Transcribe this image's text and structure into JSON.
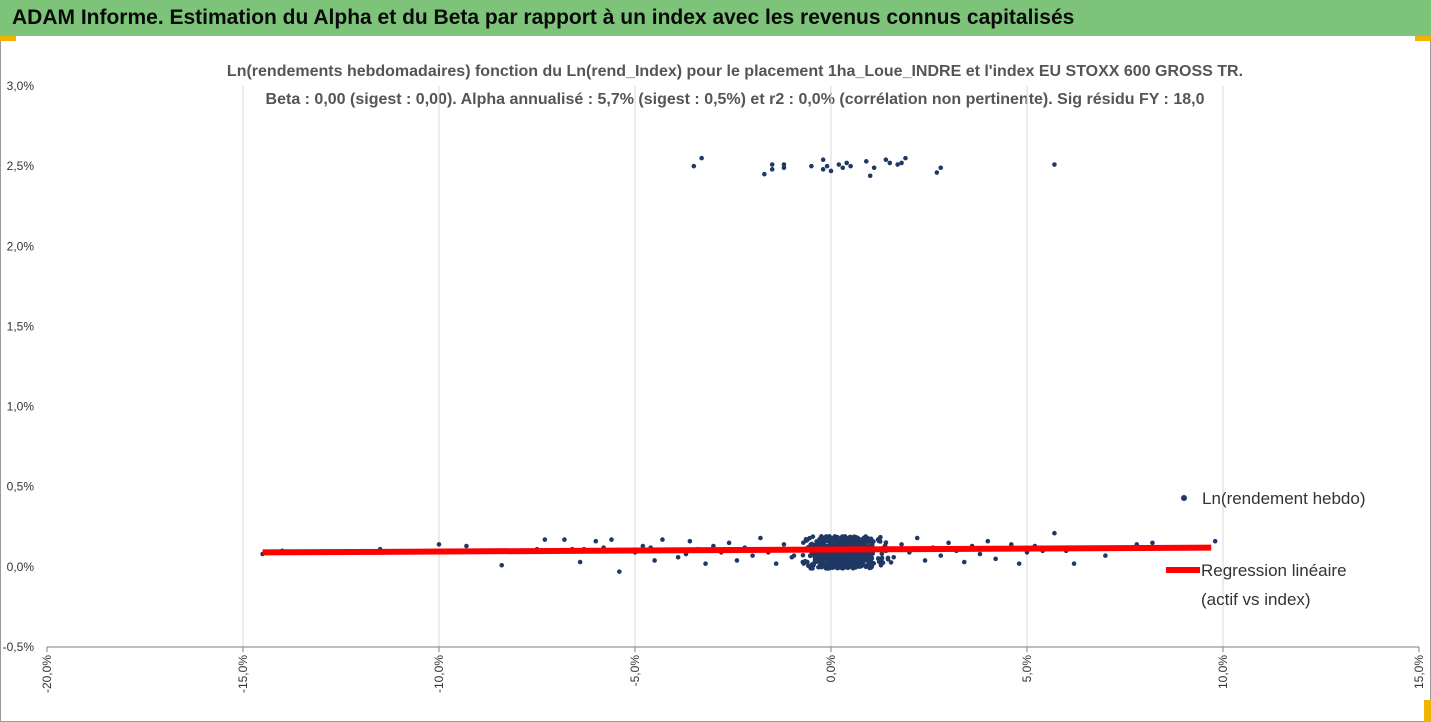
{
  "header": {
    "title": "ADAM Informe. Estimation du Alpha et du Beta par rapport à un index avec les revenus connus capitalisés"
  },
  "chart_data": {
    "type": "scatter",
    "title_line1": "Ln(rendements hebdomadaires) fonction du Ln(rend_Index) pour le placement 1ha_Loue_INDRE et l'index EU STOXX 600 GROSS TR.",
    "title_line2": "Beta : 0,00 (sigest : 0,00). Alpha annualisé : 5,7% (sigest : 0,5%) et r2 : 0,0% (corrélation non pertinente). Sig résidu FY : 18,0",
    "xlim": [
      -20,
      15
    ],
    "ylim": [
      -0.5,
      3.0
    ],
    "x_ticks": [
      "-20,0%",
      "-15,0%",
      "-10,0%",
      "-5,0%",
      "0,0%",
      "5,0%",
      "10,0%",
      "15,0%"
    ],
    "y_ticks": [
      "3,0%",
      "2,5%",
      "2,0%",
      "1,5%",
      "1,0%",
      "0,5%",
      "0,0%",
      "-0,5%"
    ],
    "x_gridlines": true,
    "y_gridlines": false,
    "legend_position": "right",
    "series": [
      {
        "name": "Ln(rendement hebdo)",
        "type": "scatter",
        "color": "#203864",
        "points": [
          [
            -3.5,
            2.5
          ],
          [
            -3.3,
            2.55
          ],
          [
            -1.7,
            2.45
          ],
          [
            -1.5,
            2.48
          ],
          [
            -1.5,
            2.51
          ],
          [
            -1.2,
            2.49
          ],
          [
            -1.2,
            2.51
          ],
          [
            -0.5,
            2.5
          ],
          [
            -0.2,
            2.54
          ],
          [
            -0.2,
            2.48
          ],
          [
            -0.1,
            2.5
          ],
          [
            0.0,
            2.47
          ],
          [
            0.2,
            2.51
          ],
          [
            0.3,
            2.49
          ],
          [
            0.4,
            2.52
          ],
          [
            0.5,
            2.5
          ],
          [
            0.9,
            2.53
          ],
          [
            1.0,
            2.44
          ],
          [
            1.1,
            2.49
          ],
          [
            1.4,
            2.54
          ],
          [
            1.5,
            2.52
          ],
          [
            1.7,
            2.51
          ],
          [
            1.8,
            2.52
          ],
          [
            1.9,
            2.55
          ],
          [
            2.7,
            2.46
          ],
          [
            2.8,
            2.49
          ],
          [
            5.7,
            2.51
          ],
          [
            -14.5,
            0.08
          ],
          [
            -14.0,
            0.1
          ],
          [
            -11.5,
            0.11
          ],
          [
            -10.0,
            0.14
          ],
          [
            -9.3,
            0.13
          ],
          [
            -8.4,
            0.01
          ],
          [
            -8.3,
            0.1
          ],
          [
            -7.5,
            0.11
          ],
          [
            -7.3,
            0.17
          ],
          [
            -6.8,
            0.17
          ],
          [
            -6.6,
            0.11
          ],
          [
            -6.4,
            0.03
          ],
          [
            -6.3,
            0.11
          ],
          [
            -6.0,
            0.16
          ],
          [
            -5.8,
            0.12
          ],
          [
            -5.6,
            0.17
          ],
          [
            -5.4,
            -0.03
          ],
          [
            -5.0,
            0.09
          ],
          [
            -4.8,
            0.13
          ],
          [
            -4.6,
            0.12
          ],
          [
            -4.5,
            0.04
          ],
          [
            -4.3,
            0.17
          ],
          [
            -4.1,
            0.1
          ],
          [
            -3.9,
            0.06
          ],
          [
            -3.7,
            0.08
          ],
          [
            -3.6,
            0.16
          ],
          [
            -3.4,
            0.11
          ],
          [
            -3.2,
            0.02
          ],
          [
            -3.0,
            0.13
          ],
          [
            -2.8,
            0.09
          ],
          [
            -2.6,
            0.15
          ],
          [
            -2.4,
            0.04
          ],
          [
            -2.2,
            0.12
          ],
          [
            -2.0,
            0.07
          ],
          [
            -1.8,
            0.18
          ],
          [
            -1.6,
            0.09
          ],
          [
            -1.4,
            0.02
          ],
          [
            -1.2,
            0.14
          ],
          [
            -1.0,
            0.06
          ],
          [
            -0.8,
            0.11
          ],
          [
            -0.6,
            0.17
          ],
          [
            -0.4,
            0.03
          ],
          [
            -0.2,
            0.09
          ],
          [
            0.0,
            0.12
          ],
          [
            0.1,
            0.19
          ],
          [
            0.2,
            0.05
          ],
          [
            0.4,
            0.15
          ],
          [
            0.6,
            0.08
          ],
          [
            0.8,
            0.13
          ],
          [
            1.0,
            0.02
          ],
          [
            1.2,
            0.17
          ],
          [
            1.4,
            0.1
          ],
          [
            1.6,
            0.06
          ],
          [
            1.8,
            0.14
          ],
          [
            2.0,
            0.09
          ],
          [
            2.2,
            0.18
          ],
          [
            2.4,
            0.04
          ],
          [
            2.6,
            0.12
          ],
          [
            2.8,
            0.07
          ],
          [
            3.0,
            0.15
          ],
          [
            3.2,
            0.1
          ],
          [
            3.4,
            0.03
          ],
          [
            3.6,
            0.13
          ],
          [
            3.8,
            0.08
          ],
          [
            4.0,
            0.16
          ],
          [
            4.2,
            0.05
          ],
          [
            4.4,
            0.11
          ],
          [
            4.6,
            0.14
          ],
          [
            4.8,
            0.02
          ],
          [
            5.0,
            0.09
          ],
          [
            5.2,
            0.13
          ],
          [
            5.4,
            0.1
          ],
          [
            5.7,
            0.21
          ],
          [
            6.0,
            0.1
          ],
          [
            6.2,
            0.02
          ],
          [
            7.0,
            0.07
          ],
          [
            7.8,
            0.14
          ],
          [
            8.2,
            0.15
          ],
          [
            8.9,
            0.12
          ],
          [
            9.8,
            0.16
          ]
        ]
      },
      {
        "name": "Regression linéaire (actif vs index)",
        "type": "line",
        "color": "#ff0000",
        "points": [
          [
            -14.5,
            0.09
          ],
          [
            9.7,
            0.12
          ]
        ]
      }
    ]
  },
  "legend": {
    "scatter_label": "Ln(rendement hebdo)",
    "line_label_1": "Regression linéaire",
    "line_label_2": "(actif vs index)"
  }
}
